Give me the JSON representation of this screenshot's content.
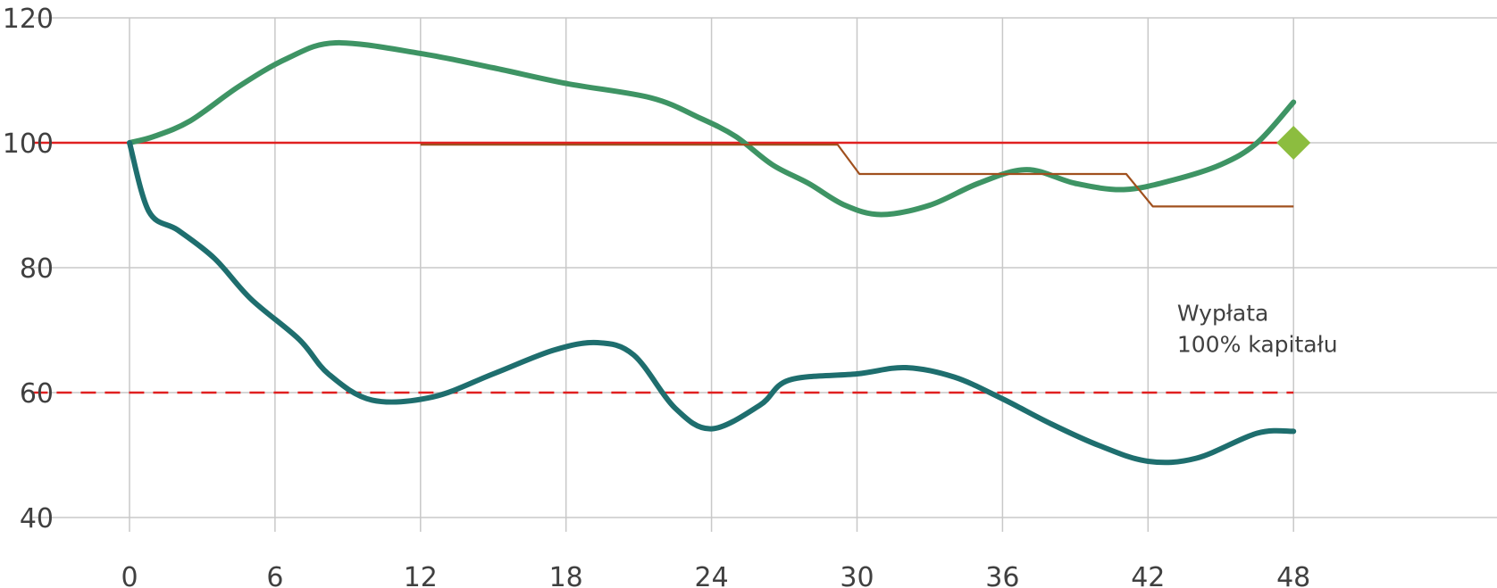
{
  "chart_data": {
    "type": "line",
    "title": "",
    "xlabel": "",
    "ylabel": "",
    "xlim": [
      -4,
      57
    ],
    "ylim": [
      40,
      120
    ],
    "x_ticks": [
      0,
      6,
      12,
      18,
      24,
      30,
      36,
      42,
      48
    ],
    "y_ticks": [
      40,
      60,
      80,
      100,
      120
    ],
    "grid": {
      "vertical": true,
      "horizontal": true
    },
    "legend": "none",
    "colors": {
      "upper_series": "#3e9464",
      "lower_series": "#1e6e6e",
      "step_series": "#a0501e",
      "reference_line": "#e02020",
      "barrier_line": "#e02020",
      "marker": "#8cbd3f",
      "grid": "#c8c8c8"
    },
    "series": [
      {
        "style": "thick-line",
        "color_key": "upper_series",
        "x": [
          0,
          1,
          2.5,
          4.5,
          6.5,
          8.5,
          12,
          15,
          18,
          21.5,
          23.5,
          25,
          26.5,
          28,
          29.5,
          31,
          33,
          35,
          37,
          39,
          41,
          43,
          45,
          46.5,
          48
        ],
        "y": [
          100,
          101,
          103.5,
          109,
          113.5,
          116,
          114.3,
          112,
          109.5,
          107.2,
          104,
          101,
          96.5,
          93.5,
          90,
          88.5,
          90,
          93.5,
          95.7,
          93.5,
          92.5,
          94,
          96.5,
          100,
          106.5
        ]
      },
      {
        "style": "thick-line",
        "color_key": "lower_series",
        "x": [
          0,
          0.8,
          2,
          3.5,
          5,
          7,
          8.2,
          10,
          12.5,
          15,
          17.5,
          19.3,
          20.8,
          22.5,
          24,
          26,
          27.2,
          30,
          32,
          34,
          36,
          38,
          40,
          42,
          44,
          46.5,
          48
        ],
        "y": [
          100,
          89,
          86,
          81.5,
          75,
          68.5,
          63,
          58.8,
          59.3,
          63,
          66.8,
          68,
          66,
          57.5,
          54.2,
          58,
          62,
          63,
          64,
          62.5,
          59,
          55,
          51.5,
          49,
          49.5,
          53.5,
          53.8
        ]
      },
      {
        "style": "thin-step",
        "color_key": "step_series",
        "x": [
          12,
          29.2,
          30.1,
          41.1,
          42.2,
          48
        ],
        "y": [
          99.7,
          99.7,
          95,
          95,
          89.8,
          89.8
        ]
      }
    ],
    "reference_lines": [
      {
        "y": 100,
        "style": "solid",
        "color_key": "reference_line",
        "x_from": -4,
        "x_to": 48
      },
      {
        "y": 60,
        "style": "dashed",
        "color_key": "barrier_line",
        "x_from": -4,
        "x_to": 48
      }
    ],
    "marker": {
      "x": 48,
      "y": 100,
      "shape": "diamond",
      "color_key": "marker"
    },
    "annotation": {
      "x": 43.2,
      "y": 71.5,
      "lines": [
        "Wypłata",
        "100% kapitału"
      ]
    }
  }
}
